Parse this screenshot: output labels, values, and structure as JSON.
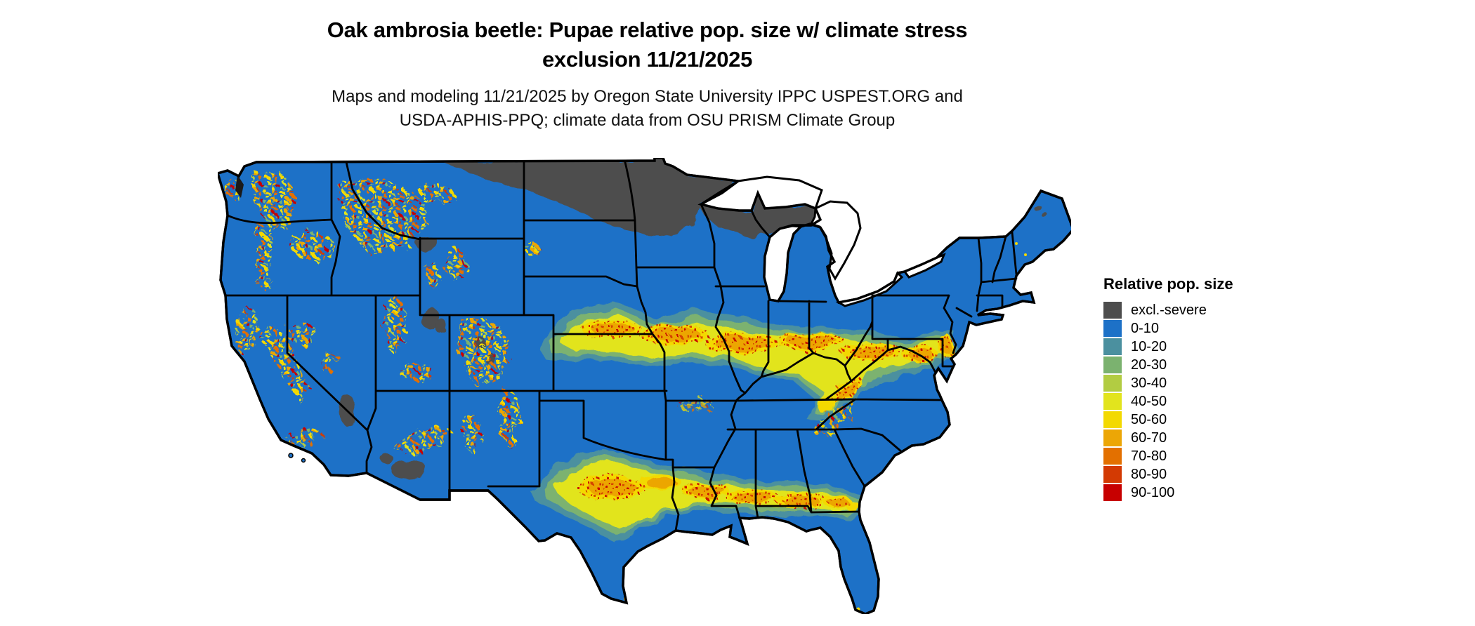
{
  "title": {
    "line1": "Oak ambrosia beetle: Pupae relative pop. size w/ climate stress",
    "line2": "exclusion 11/21/2025"
  },
  "subtitle": {
    "line1": "Maps and modeling 11/21/2025 by Oregon State University IPPC USPEST.ORG and",
    "line2": "USDA-APHIS-PPQ; climate data from OSU PRISM Climate Group"
  },
  "legend": {
    "title": "Relative pop. size",
    "items": [
      {
        "key": "excl",
        "label": "excl.-severe",
        "color": "#4d4d4d"
      },
      {
        "key": "b0",
        "label": "0-10",
        "color": "#1d71c7"
      },
      {
        "key": "b10",
        "label": "10-20",
        "color": "#4b909f"
      },
      {
        "key": "b20",
        "label": "20-30",
        "color": "#7bb26f"
      },
      {
        "key": "b30",
        "label": "30-40",
        "color": "#b2cc42"
      },
      {
        "key": "b40",
        "label": "40-50",
        "color": "#e2e41d"
      },
      {
        "key": "b50",
        "label": "50-60",
        "color": "#f3d900"
      },
      {
        "key": "b60",
        "label": "60-70",
        "color": "#eca606"
      },
      {
        "key": "b70",
        "label": "70-80",
        "color": "#e37000"
      },
      {
        "key": "b80",
        "label": "80-90",
        "color": "#d33a03"
      },
      {
        "key": "b90",
        "label": "90-100",
        "color": "#c70000"
      }
    ]
  },
  "map": {
    "region": "Contiguous United States",
    "type": "raster choropleth with state boundaries",
    "base_class": "0-10",
    "base_color": "#1d71c7",
    "boundary_color": "#000000",
    "water_color": "#ffffff",
    "excluded_color": "#4d4d4d"
  }
}
